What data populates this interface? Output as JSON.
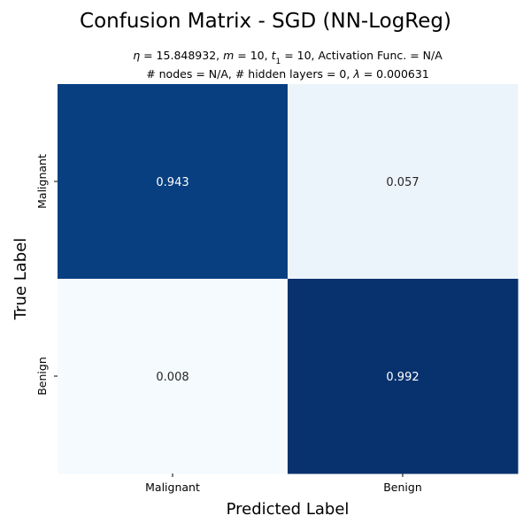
{
  "chart_data": {
    "type": "heatmap",
    "title": "Confusion Matrix - SGD (NN-LogReg)",
    "subtitle": {
      "line1": [
        {
          "text": "η",
          "italic": true
        },
        {
          "text": " = 15.848932, ",
          "italic": false
        },
        {
          "text": "m",
          "italic": true
        },
        {
          "text": " = 10, ",
          "italic": false
        },
        {
          "text": "t",
          "italic": true
        },
        {
          "text": "1",
          "italic": false,
          "sub": true
        },
        {
          "text": " = 10, Activation Func. = N/A",
          "italic": false
        }
      ],
      "line2": [
        {
          "text": "# nodes = N/A, # hidden layers = 0, ",
          "italic": false
        },
        {
          "text": "λ",
          "italic": true
        },
        {
          "text": " = 0.000631",
          "italic": false
        }
      ]
    },
    "xlabel": "Predicted Label",
    "ylabel": "True Label",
    "x_categories": [
      "Malignant",
      "Benign"
    ],
    "y_categories": [
      "Malignant",
      "Benign"
    ],
    "values": [
      [
        0.943,
        0.057
      ],
      [
        0.008,
        0.992
      ]
    ],
    "value_labels": [
      [
        "0.943",
        "0.057"
      ],
      [
        "0.008",
        "0.992"
      ]
    ],
    "colormap": "Blues",
    "color_range": [
      0,
      1
    ],
    "colorbar": false,
    "grid": false
  }
}
